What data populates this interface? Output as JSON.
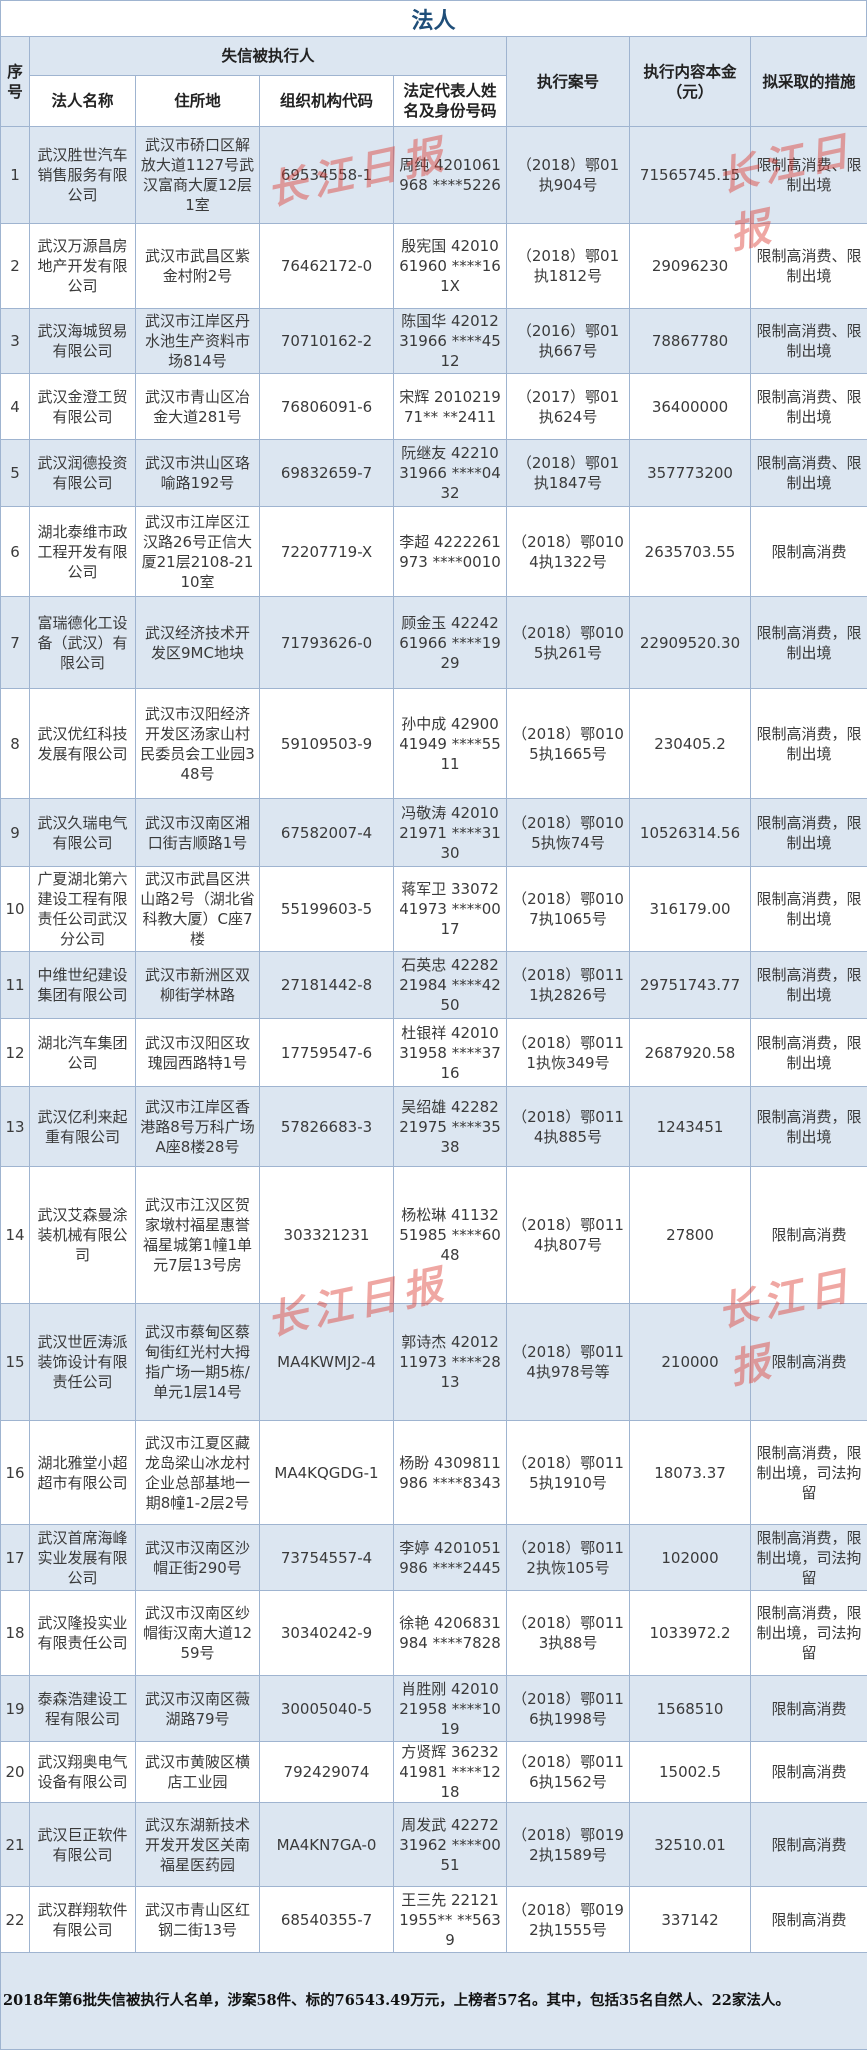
{
  "title": "法人",
  "header": {
    "index": "序号",
    "group": "失信被执行人",
    "company_name": "法人名称",
    "address": "住所地",
    "org_code": "组织机构代码",
    "legal_rep": "法定代表人姓名及身份号码",
    "case_no": "执行案号",
    "amount": "执行内容本金（元）",
    "measures": "拟采取的措施"
  },
  "rows": [
    {
      "no": "1",
      "name": "武汉胜世汽车销售服务有限公司",
      "address": "武汉市硚口区解放大道1127号武汉富商大厦12层1室",
      "code": "69534558-1",
      "rep": "周纯 4201061968 ****5226",
      "case": "（2018）鄂01执904号",
      "amount": "71565745.15",
      "measures": "限制高消费、限制出境"
    },
    {
      "no": "2",
      "name": "武汉万源昌房地产开发有限公司",
      "address": "武汉市武昌区紫金村附2号",
      "code": "76462172-0",
      "rep": "殷宪国 4201061960 ****161X",
      "case": "（2018）鄂01执1812号",
      "amount": "29096230",
      "measures": "限制高消费、限制出境"
    },
    {
      "no": "3",
      "name": "武汉海城贸易有限公司",
      "address": "武汉市江岸区丹水池生产资料市场814号",
      "code": "70710162-2",
      "rep": "陈国华 4201231966 ****4512",
      "case": "（2016）鄂01执667号",
      "amount": "78867780",
      "measures": "限制高消费、限制出境"
    },
    {
      "no": "4",
      "name": "武汉金澄工贸有限公司",
      "address": "武汉市青山区冶金大道281号",
      "code": "76806091-6",
      "rep": "宋辉 201021971** **2411",
      "case": "（2017）鄂01执624号",
      "amount": "36400000",
      "measures": "限制高消费、限制出境"
    },
    {
      "no": "5",
      "name": "武汉润德投资有限公司",
      "address": "武汉市洪山区珞喻路192号",
      "code": "69832659-7",
      "rep": "阮继友 4221031966 ****0432",
      "case": "（2018）鄂01执1847号",
      "amount": "357773200",
      "measures": "限制高消费、限制出境"
    },
    {
      "no": "6",
      "name": "湖北泰维市政工程开发有限公司",
      "address": "武汉市江岸区江汉路26号正信大厦21层2108-2110室",
      "code": "72207719-X",
      "rep": "李超 4222261973 ****0010",
      "case": "（2018）鄂0104执1322号",
      "amount": "2635703.55",
      "measures": "限制高消费"
    },
    {
      "no": "7",
      "name": "富瑞德化工设备（武汉）有限公司",
      "address": "武汉经济技术开发区9MC地块",
      "code": "71793626-0",
      "rep": "顾金玉 4224261966 ****1929",
      "case": "（2018）鄂0105执261号",
      "amount": "22909520.30",
      "measures": "限制高消费，限制出境"
    },
    {
      "no": "8",
      "name": "武汉优红科技发展有限公司",
      "address": "武汉市汉阳经济开发区汤家山村民委员会工业园348号",
      "code": "59109503-9",
      "rep": "孙中成 4290041949 ****5511",
      "case": "（2018）鄂0105执1665号",
      "amount": "230405.2",
      "measures": "限制高消费，限制出境"
    },
    {
      "no": "9",
      "name": "武汉久瑞电气有限公司",
      "address": "武汉市汉南区湘口街吉顺路1号",
      "code": "67582007-4",
      "rep": "冯敬涛 4201021971 ****3130",
      "case": "（2018）鄂0105执恢74号",
      "amount": "10526314.56",
      "measures": "限制高消费，限制出境"
    },
    {
      "no": "10",
      "name": "广夏湖北第六建设工程有限责任公司武汉分公司",
      "address": "武汉市武昌区洪山路2号（湖北省科教大厦）C座7楼",
      "code": "55199603-5",
      "rep": "蒋军卫 3307241973 ****0017",
      "case": "（2018）鄂0107执1065号",
      "amount": "316179.00",
      "measures": "限制高消费，限制出境"
    },
    {
      "no": "11",
      "name": "中维世纪建设集团有限公司",
      "address": "武汉市新洲区双柳街学林路",
      "code": "27181442-8",
      "rep": "石英忠 4228221984 ****4250",
      "case": "（2018）鄂0111执2826号",
      "amount": "29751743.77",
      "measures": "限制高消费，限制出境"
    },
    {
      "no": "12",
      "name": "湖北汽车集团公司",
      "address": "武汉市汉阳区玫瑰园西路特1号",
      "code": "17759547-6",
      "rep": "杜银祥 4201031958 ****3716",
      "case": "（2018）鄂0111执恢349号",
      "amount": "2687920.58",
      "measures": "限制高消费，限制出境"
    },
    {
      "no": "13",
      "name": "武汉亿利来起重有限公司",
      "address": "武汉市江岸区香港路8号万科广场A座8楼28号",
      "code": "57826683-3",
      "rep": "吴绍雄 4228221975 ****3538",
      "case": "（2018）鄂0114执885号",
      "amount": "1243451",
      "measures": "限制高消费，限制出境"
    },
    {
      "no": "14",
      "name": "武汉艾森曼涂装机械有限公司",
      "address": "武汉市江汉区贺家墩村福星惠誉福星城第1幢1单元7层13号房",
      "code": "303321231",
      "rep": "杨松琳 4113251985 ****6048",
      "case": "（2018）鄂0114执807号",
      "amount": "27800",
      "measures": "限制高消费"
    },
    {
      "no": "15",
      "name": "武汉世匠涛派装饰设计有限责任公司",
      "address": "武汉市蔡甸区蔡甸街红光村大拇指广场一期5栋/单元1层14号",
      "code": "MA4KWMJ2-4",
      "rep": "郭诗杰 4201211973 ****2813",
      "case": "（2018）鄂0114执978号等",
      "amount": "210000",
      "measures": "限制高消费"
    },
    {
      "no": "16",
      "name": "湖北雅堂小超超市有限公司",
      "address": "武汉市江夏区藏龙岛梁山冰龙村企业总部基地一期8幢1-2层2号",
      "code": "MA4KQGDG-1",
      "rep": "杨盼 4309811986 ****8343",
      "case": "（2018）鄂0115执1910号",
      "amount": "18073.37",
      "measures": "限制高消费，限制出境，司法拘留"
    },
    {
      "no": "17",
      "name": "武汉首席海峰实业发展有限公司",
      "address": "武汉市汉南区沙帽正街290号",
      "code": "73754557-4",
      "rep": "李婷 4201051986 ****2445",
      "case": "（2018）鄂0112执恢105号",
      "amount": "102000",
      "measures": "限制高消费，限制出境，司法拘留"
    },
    {
      "no": "18",
      "name": "武汉隆投实业有限责任公司",
      "address": "武汉市汉南区纱帽街汉南大道1259号",
      "code": "30340242-9",
      "rep": "徐艳 4206831984 ****7828",
      "case": "（2018）鄂0113执88号",
      "amount": "1033972.2",
      "measures": "限制高消费，限制出境，司法拘留"
    },
    {
      "no": "19",
      "name": "泰森浩建设工程有限公司",
      "address": "武汉市汉南区薇湖路79号",
      "code": "30005040-5",
      "rep": "肖胜刚 4201021958 ****1019",
      "case": "（2018）鄂0116执1998号",
      "amount": "1568510",
      "measures": "限制高消费"
    },
    {
      "no": "20",
      "name": "武汉翔奥电气设备有限公司",
      "address": "武汉市黄陂区横店工业园",
      "code": "792429074",
      "rep": "方贤辉 3623241981 ****1218",
      "case": "（2018）鄂0116执1562号",
      "amount": "15002.5",
      "measures": "限制高消费"
    },
    {
      "no": "21",
      "name": "武汉巨正软件有限公司",
      "address": "武汉东湖新技术开发开发区关南福星医药园",
      "code": "MA4KN7GA-0",
      "rep": "周发武 4227231962 ****0051",
      "case": "（2018）鄂0192执1589号",
      "amount": "32510.01",
      "measures": "限制高消费"
    },
    {
      "no": "22",
      "name": "武汉群翔软件有限公司",
      "address": "武汉市青山区红钢二街13号",
      "code": "68540355-7",
      "rep": "王三先 221211955** **5639",
      "case": "（2018）鄂0192执1555号",
      "amount": "337142",
      "measures": "限制高消费"
    }
  ],
  "footer": "2018年第6批失信被执行人名单，涉案58件、标的76543.49万元，上榜者57名。其中，包括35名自然人、22家法人。",
  "watermark": "长江日报",
  "colors": {
    "header_bg": "#dce6f1",
    "title": "#1f4e79",
    "watermark": "#dc3c32"
  }
}
